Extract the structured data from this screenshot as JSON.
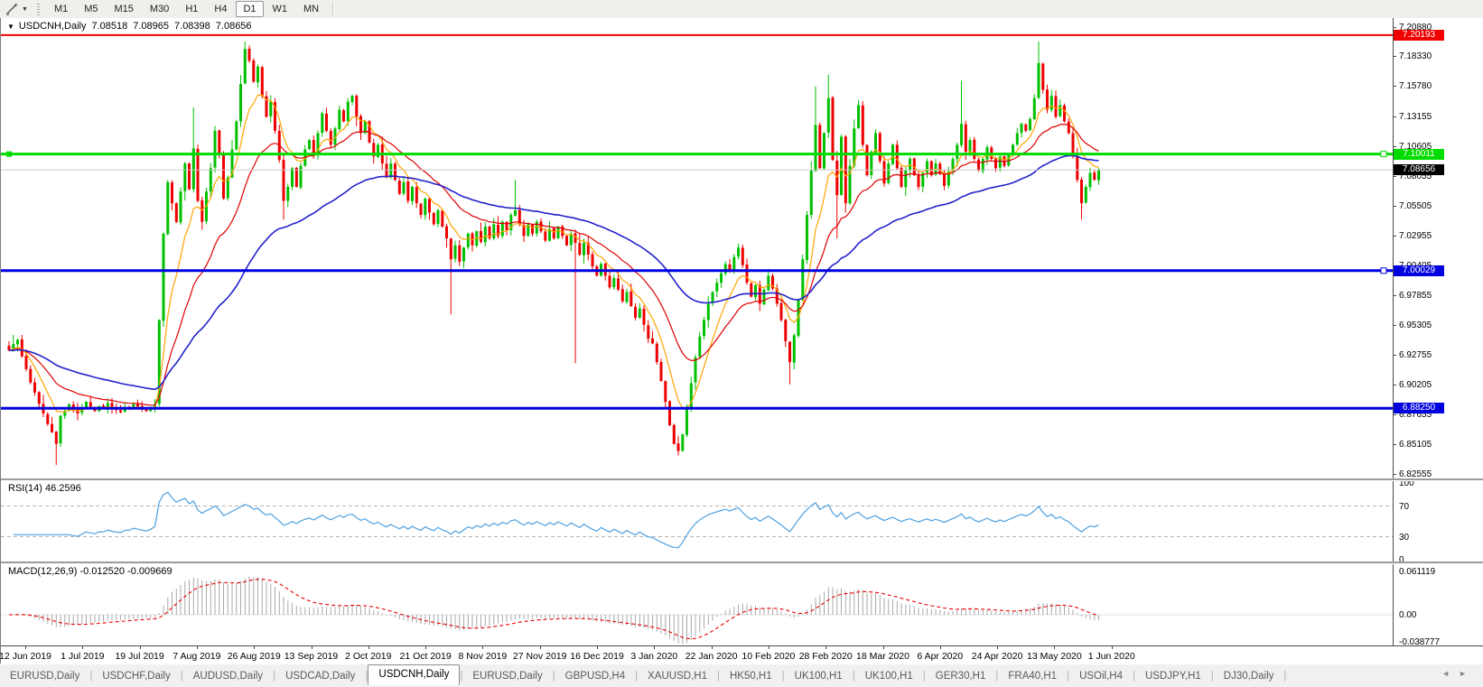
{
  "toolbar": {
    "timeframes": [
      "M1",
      "M5",
      "M15",
      "M30",
      "H1",
      "H4",
      "D1",
      "W1",
      "MN"
    ],
    "active_timeframe": "D1",
    "line_tool_icon": "trendline-tool"
  },
  "chart": {
    "title": {
      "symbol": "USDCNH,Daily",
      "open": "7.08518",
      "high": "7.08965",
      "low": "7.08398",
      "close": "7.08656"
    },
    "price_axis_ticks": [
      "7.20880",
      "7.18330",
      "7.15780",
      "7.13155",
      "7.10605",
      "7.08055",
      "7.05505",
      "7.02955",
      "7.00405",
      "6.97855",
      "6.95305",
      "6.92755",
      "6.90205",
      "6.87655",
      "6.85105",
      "6.82555"
    ],
    "hlines": [
      {
        "value": 7.20193,
        "label": "7.20193",
        "color": "#f00000",
        "width": 2,
        "left_handle": false,
        "right_handle": false
      },
      {
        "value": 7.10011,
        "label": "7.10011",
        "color": "#00dc00",
        "width": 3,
        "left_handle": true,
        "right_handle": true
      },
      {
        "value": 7.08656,
        "label": "7.08656",
        "color": "#c8c8c8",
        "width": 1,
        "label_bg": "#000000",
        "left_handle": false,
        "right_handle": false
      },
      {
        "value": 7.00029,
        "label": "7.00029",
        "color": "#0000e0",
        "width": 3,
        "left_handle": false,
        "right_handle": true
      },
      {
        "value": 6.8825,
        "label": "6.88250",
        "color": "#0000e0",
        "width": 3,
        "left_handle": false,
        "right_handle": false
      }
    ],
    "date_axis": [
      "12 Jun 2019",
      "1 Jul 2019",
      "19 Jul 2019",
      "7 Aug 2019",
      "26 Aug 2019",
      "13 Sep 2019",
      "2 Oct 2019",
      "21 Oct 2019",
      "8 Nov 2019",
      "27 Nov 2019",
      "16 Dec 2019",
      "3 Jan 2020",
      "22 Jan 2020",
      "10 Feb 2020",
      "28 Feb 2020",
      "18 Mar 2020",
      "6 Apr 2020",
      "24 Apr 2020",
      "13 May 2020",
      "1 Jun 2020"
    ]
  },
  "chart_data": {
    "type": "candlestick",
    "symbol": "USDCNH",
    "timeframe": "Daily",
    "x_range_days": 255,
    "price_keyframes": [
      [
        0,
        6.932
      ],
      [
        2,
        6.941
      ],
      [
        4,
        6.916
      ],
      [
        6,
        6.896
      ],
      [
        8,
        6.878
      ],
      [
        10,
        6.862
      ],
      [
        11,
        6.852
      ],
      [
        12,
        6.876
      ],
      [
        14,
        6.886
      ],
      [
        16,
        6.878
      ],
      [
        18,
        6.888
      ],
      [
        20,
        6.88
      ],
      [
        23,
        6.887
      ],
      [
        26,
        6.879
      ],
      [
        29,
        6.886
      ],
      [
        32,
        6.88
      ],
      [
        34,
        6.886
      ],
      [
        35,
        6.958
      ],
      [
        36,
        7.032
      ],
      [
        37,
        7.076
      ],
      [
        38,
        7.058
      ],
      [
        39,
        7.042
      ],
      [
        40,
        7.068
      ],
      [
        41,
        7.092
      ],
      [
        42,
        7.07
      ],
      [
        43,
        7.105
      ],
      [
        44,
        7.06
      ],
      [
        45,
        7.042
      ],
      [
        46,
        7.068
      ],
      [
        47,
        7.088
      ],
      [
        48,
        7.12
      ],
      [
        49,
        7.1
      ],
      [
        50,
        7.062
      ],
      [
        51,
        7.08
      ],
      [
        52,
        7.104
      ],
      [
        53,
        7.128
      ],
      [
        54,
        7.16
      ],
      [
        55,
        7.19
      ],
      [
        56,
        7.18
      ],
      [
        57,
        7.162
      ],
      [
        58,
        7.175
      ],
      [
        59,
        7.15
      ],
      [
        60,
        7.132
      ],
      [
        61,
        7.145
      ],
      [
        62,
        7.12
      ],
      [
        63,
        7.095
      ],
      [
        64,
        7.06
      ],
      [
        65,
        7.072
      ],
      [
        66,
        7.088
      ],
      [
        67,
        7.072
      ],
      [
        68,
        7.09
      ],
      [
        69,
        7.104
      ],
      [
        70,
        7.112
      ],
      [
        71,
        7.1
      ],
      [
        72,
        7.118
      ],
      [
        73,
        7.135
      ],
      [
        74,
        7.12
      ],
      [
        75,
        7.108
      ],
      [
        76,
        7.122
      ],
      [
        77,
        7.138
      ],
      [
        78,
        7.128
      ],
      [
        79,
        7.145
      ],
      [
        80,
        7.15
      ],
      [
        81,
        7.132
      ],
      [
        82,
        7.118
      ],
      [
        83,
        7.128
      ],
      [
        84,
        7.11
      ],
      [
        85,
        7.098
      ],
      [
        86,
        7.108
      ],
      [
        87,
        7.092
      ],
      [
        88,
        7.08
      ],
      [
        89,
        7.092
      ],
      [
        90,
        7.078
      ],
      [
        91,
        7.066
      ],
      [
        92,
        7.076
      ],
      [
        93,
        7.06
      ],
      [
        94,
        7.072
      ],
      [
        95,
        7.058
      ],
      [
        96,
        7.048
      ],
      [
        97,
        7.062
      ],
      [
        98,
        7.05
      ],
      [
        99,
        7.04
      ],
      [
        100,
        7.052
      ],
      [
        101,
        7.038
      ],
      [
        102,
        7.028
      ],
      [
        103,
        7.01
      ],
      [
        104,
        7.022
      ],
      [
        105,
        7.008
      ],
      [
        106,
        7.02
      ],
      [
        107,
        7.032
      ],
      [
        108,
        7.022
      ],
      [
        109,
        7.034
      ],
      [
        110,
        7.025
      ],
      [
        111,
        7.038
      ],
      [
        112,
        7.028
      ],
      [
        113,
        7.04
      ],
      [
        114,
        7.03
      ],
      [
        115,
        7.042
      ],
      [
        116,
        7.035
      ],
      [
        117,
        7.048
      ],
      [
        118,
        7.052
      ],
      [
        119,
        7.04
      ],
      [
        120,
        7.03
      ],
      [
        121,
        7.04
      ],
      [
        122,
        7.032
      ],
      [
        123,
        7.042
      ],
      [
        124,
        7.034
      ],
      [
        125,
        7.026
      ],
      [
        126,
        7.036
      ],
      [
        127,
        7.028
      ],
      [
        128,
        7.038
      ],
      [
        129,
        7.03
      ],
      [
        130,
        7.022
      ],
      [
        131,
        7.032
      ],
      [
        132,
        7.024
      ],
      [
        133,
        7.014
      ],
      [
        134,
        7.024
      ],
      [
        135,
        7.014
      ],
      [
        136,
        7.004
      ],
      [
        137,
        6.996
      ],
      [
        138,
        7.006
      ],
      [
        139,
        6.996
      ],
      [
        140,
        6.986
      ],
      [
        141,
        6.994
      ],
      [
        142,
        6.984
      ],
      [
        143,
        6.974
      ],
      [
        144,
        6.982
      ],
      [
        145,
        6.97
      ],
      [
        146,
        6.96
      ],
      [
        147,
        6.968
      ],
      [
        148,
        6.954
      ],
      [
        149,
        6.942
      ],
      [
        150,
        6.938
      ],
      [
        151,
        6.922
      ],
      [
        152,
        6.906
      ],
      [
        153,
        6.888
      ],
      [
        154,
        6.868
      ],
      [
        155,
        6.852
      ],
      [
        156,
        6.846
      ],
      [
        157,
        6.86
      ],
      [
        158,
        6.882
      ],
      [
        159,
        6.904
      ],
      [
        160,
        6.926
      ],
      [
        161,
        6.944
      ],
      [
        162,
        6.958
      ],
      [
        163,
        6.972
      ],
      [
        164,
        6.982
      ],
      [
        165,
        6.99
      ],
      [
        166,
        6.998
      ],
      [
        167,
        7.006
      ],
      [
        168,
        7.0
      ],
      [
        169,
        7.012
      ],
      [
        170,
        7.02
      ],
      [
        171,
        7.005
      ],
      [
        172,
        6.99
      ],
      [
        173,
        6.978
      ],
      [
        174,
        6.988
      ],
      [
        175,
        6.972
      ],
      [
        176,
        6.984
      ],
      [
        177,
        6.996
      ],
      [
        178,
        6.985
      ],
      [
        179,
        6.972
      ],
      [
        180,
        6.958
      ],
      [
        181,
        6.94
      ],
      [
        182,
        6.922
      ],
      [
        183,
        6.945
      ],
      [
        184,
        6.975
      ],
      [
        185,
        7.01
      ],
      [
        186,
        7.048
      ],
      [
        187,
        7.086
      ],
      [
        188,
        7.125
      ],
      [
        189,
        7.088
      ],
      [
        190,
        7.118
      ],
      [
        191,
        7.148
      ],
      [
        192,
        7.095
      ],
      [
        193,
        7.065
      ],
      [
        194,
        7.115
      ],
      [
        195,
        7.058
      ],
      [
        196,
        7.09
      ],
      [
        197,
        7.122
      ],
      [
        198,
        7.142
      ],
      [
        199,
        7.108
      ],
      [
        200,
        7.082
      ],
      [
        201,
        7.102
      ],
      [
        202,
        7.118
      ],
      [
        203,
        7.094
      ],
      [
        204,
        7.075
      ],
      [
        205,
        7.092
      ],
      [
        206,
        7.108
      ],
      [
        207,
        7.088
      ],
      [
        208,
        7.072
      ],
      [
        209,
        7.086
      ],
      [
        210,
        7.096
      ],
      [
        211,
        7.082
      ],
      [
        212,
        7.072
      ],
      [
        213,
        7.084
      ],
      [
        214,
        7.094
      ],
      [
        215,
        7.082
      ],
      [
        216,
        7.092
      ],
      [
        217,
        7.083
      ],
      [
        218,
        7.073
      ],
      [
        219,
        7.085
      ],
      [
        220,
        7.096
      ],
      [
        221,
        7.108
      ],
      [
        222,
        7.126
      ],
      [
        223,
        7.102
      ],
      [
        224,
        7.112
      ],
      [
        225,
        7.096
      ],
      [
        226,
        7.086
      ],
      [
        227,
        7.096
      ],
      [
        228,
        7.106
      ],
      [
        229,
        7.096
      ],
      [
        230,
        7.088
      ],
      [
        231,
        7.098
      ],
      [
        232,
        7.09
      ],
      [
        233,
        7.1
      ],
      [
        234,
        7.108
      ],
      [
        235,
        7.118
      ],
      [
        236,
        7.126
      ],
      [
        237,
        7.12
      ],
      [
        238,
        7.13
      ],
      [
        239,
        7.148
      ],
      [
        240,
        7.178
      ],
      [
        241,
        7.155
      ],
      [
        242,
        7.138
      ],
      [
        243,
        7.15
      ],
      [
        244,
        7.132
      ],
      [
        245,
        7.142
      ],
      [
        246,
        7.128
      ],
      [
        247,
        7.118
      ],
      [
        248,
        7.098
      ],
      [
        249,
        7.078
      ],
      [
        250,
        7.058
      ],
      [
        251,
        7.072
      ],
      [
        252,
        7.084
      ],
      [
        253,
        7.078
      ],
      [
        254,
        7.08656
      ]
    ],
    "wick_spikes": [
      {
        "d": 11,
        "low": 6.834
      },
      {
        "d": 43,
        "high": 7.14
      },
      {
        "d": 55,
        "high": 7.1965
      },
      {
        "d": 64,
        "low": 7.044
      },
      {
        "d": 103,
        "low": 6.963
      },
      {
        "d": 118,
        "high": 7.078
      },
      {
        "d": 132,
        "low": 6.921
      },
      {
        "d": 156,
        "low": 6.842
      },
      {
        "d": 182,
        "low": 6.903
      },
      {
        "d": 188,
        "high": 7.158
      },
      {
        "d": 191,
        "high": 7.168
      },
      {
        "d": 193,
        "low": 7.028
      },
      {
        "d": 222,
        "high": 7.163
      },
      {
        "d": 240,
        "high": 7.1965
      },
      {
        "d": 250,
        "low": 7.044
      }
    ],
    "last_close": 7.08656,
    "moving_averages": [
      {
        "period": 8,
        "color_key": "ma_fast"
      },
      {
        "period": 21,
        "color_key": "ma_mid"
      },
      {
        "period": 55,
        "color_key": "ma_slow"
      }
    ],
    "price_axis_top": 7.2088,
    "price_axis_step": 0.0255
  },
  "indicators": {
    "rsi": {
      "label": "RSI(14) 46.2596",
      "period": 14,
      "current": "46.2596",
      "levels": [
        "100",
        "70",
        "30",
        "0"
      ],
      "overbought": 70,
      "oversold": 30
    },
    "macd": {
      "label": "MACD(12,26,9) -0.012520 -0.009669",
      "fast": 12,
      "slow": 26,
      "signal": 9,
      "current_main": "-0.012520",
      "current_signal": "-0.009669",
      "axis_ticks": [
        {
          "text": "0.061119",
          "value": 0.061119
        },
        {
          "text": "0.00",
          "value": 0
        },
        {
          "text": "-0.038777",
          "value": -0.038777
        }
      ]
    }
  },
  "tabs": {
    "items": [
      "EURUSD,Daily",
      "USDCHF,Daily",
      "AUDUSD,Daily",
      "USDCAD,Daily",
      "USDCNH,Daily",
      "EURUSD,Daily",
      "GBPUSD,H4",
      "XAUUSD,H1",
      "HK50,H1",
      "UK100,H1",
      "UK100,H1",
      "GER30,H1",
      "FRA40,H1",
      "USOil,H4",
      "USDJPY,H1",
      "DJ30,Daily"
    ],
    "active_index": 4
  },
  "colors": {
    "bull": "#00c000",
    "bear": "#ee0000",
    "ma_fast": "#ffa500",
    "ma_mid": "#e00000",
    "ma_slow": "#2222cc",
    "rsi_line": "#4da0e0",
    "rsi_level": "#b4b4b4",
    "macd_hist": "#a8a8a8",
    "macd_signal": "#e80000",
    "current_price_line": "#c8c8c8"
  }
}
